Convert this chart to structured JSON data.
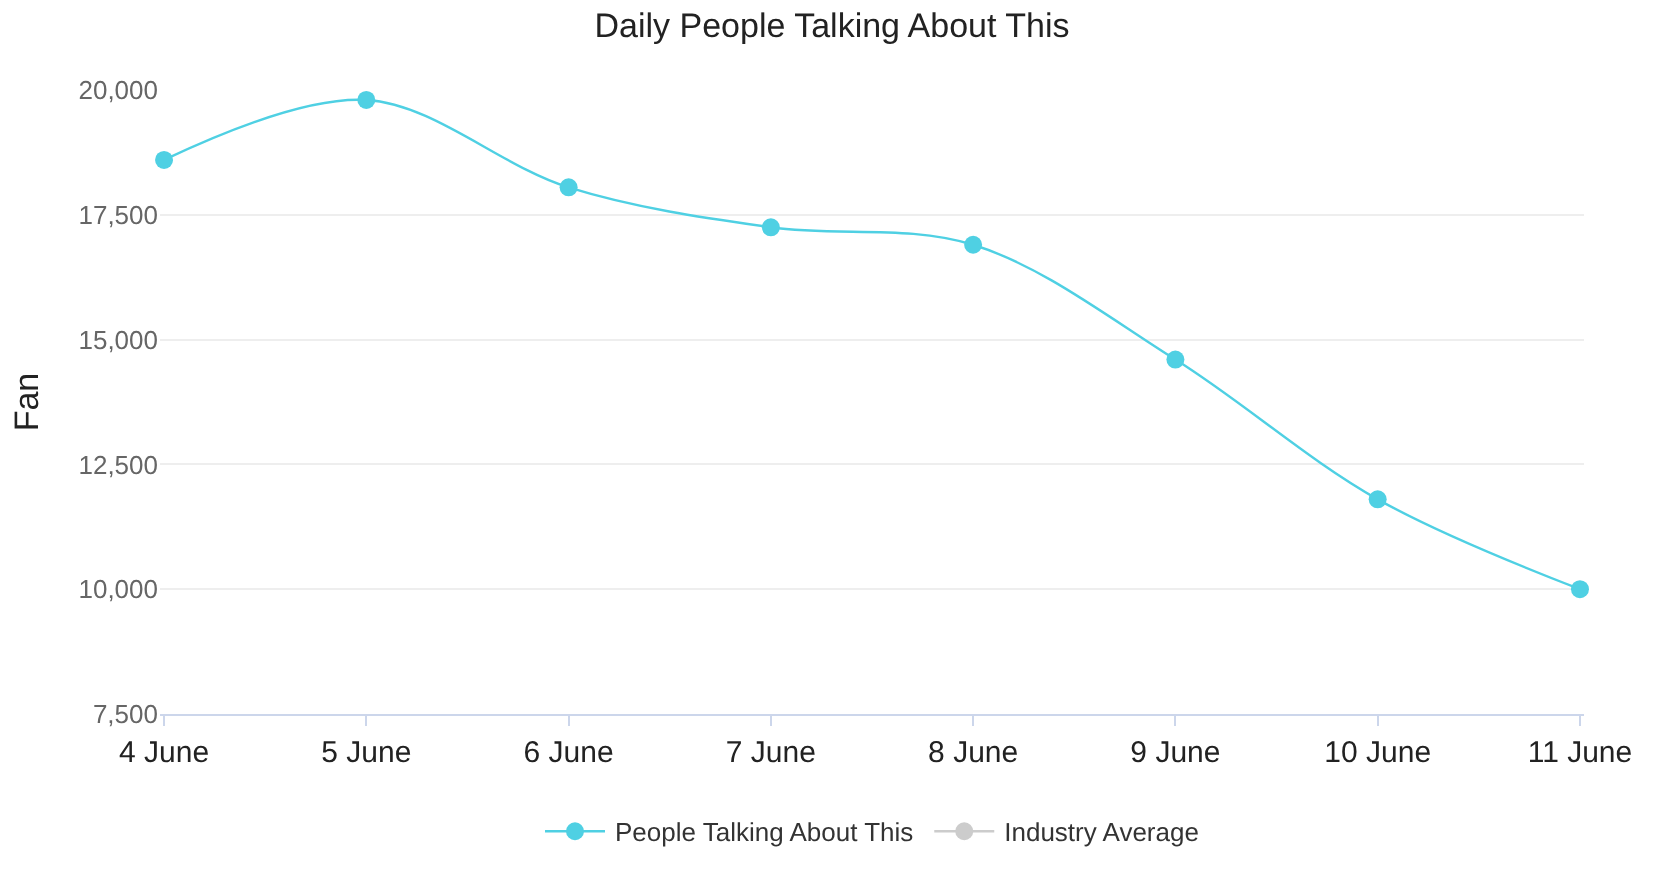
{
  "chart_data": {
    "type": "line",
    "title": "Daily People Talking About This",
    "ylabel": "Fan",
    "categories": [
      "4 June",
      "5 June",
      "6 June",
      "7 June",
      "8 June",
      "9 June",
      "10 June",
      "11 June"
    ],
    "series": [
      {
        "name": "People Talking About This",
        "color": "#4fd0e3",
        "values": [
          18600,
          19800,
          18050,
          17250,
          16900,
          14600,
          11800,
          10000
        ]
      },
      {
        "name": "Industry Average",
        "color": "#cccccc",
        "values": [
          null,
          null,
          null,
          null,
          null,
          null,
          null,
          null
        ]
      }
    ],
    "ylim": [
      7500,
      20000
    ],
    "yticks": [
      {
        "value": 7500,
        "label": "7,500"
      },
      {
        "value": 10000,
        "label": "10,000"
      },
      {
        "value": 12500,
        "label": "12,500"
      },
      {
        "value": 15000,
        "label": "15,000"
      },
      {
        "value": 17500,
        "label": "17,500"
      },
      {
        "value": 20000,
        "label": "20,000"
      }
    ],
    "grid": "y",
    "legend": "bottom",
    "marker": "circle",
    "line_style": "solid"
  }
}
